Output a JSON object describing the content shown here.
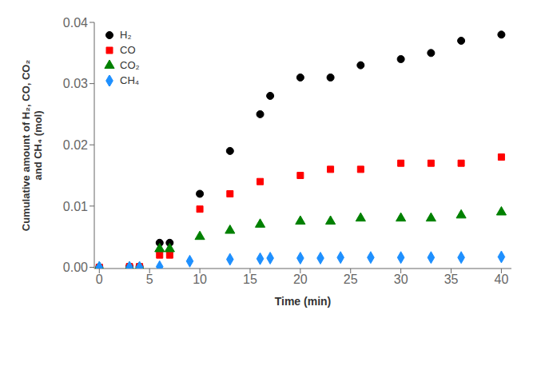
{
  "chart_data": {
    "type": "scatter",
    "xlabel": "Time (min)",
    "ylabel": "Cumulative amount of H₂, CO, CO₂\nand CH₄ (mol)",
    "xlim": [
      -0.5,
      41
    ],
    "ylim": [
      -0.0002,
      0.04
    ],
    "xticks": [
      0,
      5,
      10,
      15,
      20,
      25,
      30,
      35,
      40
    ],
    "yticks": [
      {
        "value": 0,
        "label": "0.00"
      },
      0.01,
      0.02,
      0.03,
      0.04
    ],
    "grid": false,
    "legend": "upper left",
    "series": [
      {
        "name": "H₂",
        "color": "#000000",
        "marker": "circle",
        "x": [
          0,
          3,
          4,
          6,
          7,
          10,
          13,
          16,
          17,
          20,
          23,
          26,
          30,
          33,
          36,
          40
        ],
        "values": [
          0.0,
          0.0001,
          0.0001,
          0.004,
          0.004,
          0.012,
          0.019,
          0.025,
          0.028,
          0.031,
          0.031,
          0.033,
          0.034,
          0.035,
          0.037,
          0.038
        ]
      },
      {
        "name": "CO",
        "color": "#ff0000",
        "marker": "square",
        "x": [
          0,
          3,
          4,
          6,
          7,
          10,
          13,
          16,
          20,
          23,
          26,
          30,
          33,
          36,
          40
        ],
        "values": [
          0.0,
          0.0001,
          0.0001,
          0.002,
          0.002,
          0.0095,
          0.012,
          0.014,
          0.015,
          0.016,
          0.016,
          0.017,
          0.017,
          0.017,
          0.018
        ]
      },
      {
        "name": "CO₂",
        "color": "#008000",
        "marker": "triangle",
        "x": [
          0,
          3,
          4,
          6,
          7,
          10,
          13,
          16,
          20,
          23,
          26,
          30,
          33,
          36,
          40
        ],
        "values": [
          0.0,
          0.0,
          0.0,
          0.003,
          0.003,
          0.005,
          0.006,
          0.007,
          0.0075,
          0.0075,
          0.008,
          0.008,
          0.008,
          0.0085,
          0.009
        ]
      },
      {
        "name": "CH₄",
        "color": "#1e90ff",
        "marker": "diamond",
        "x": [
          0,
          3,
          4,
          6,
          9,
          13,
          16,
          17,
          20,
          22,
          24,
          27,
          30,
          33,
          36,
          40
        ],
        "values": [
          0.0,
          0.0,
          0.0,
          0.0001,
          0.001,
          0.0013,
          0.0014,
          0.0015,
          0.0015,
          0.0015,
          0.0016,
          0.0016,
          0.0016,
          0.0016,
          0.0016,
          0.0017
        ]
      }
    ]
  }
}
